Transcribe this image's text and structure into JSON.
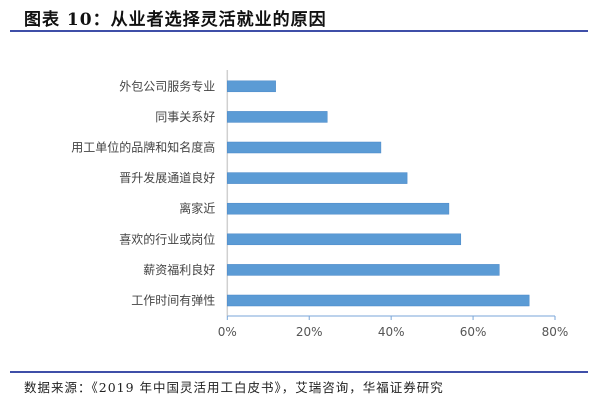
{
  "header": {
    "title": "图表 10：从业者选择灵活就业的原因"
  },
  "footer": {
    "source": "数据来源：《2019 年中国灵活用工白皮书》，艾瑞咨询，华福证券研究"
  },
  "chart_data": {
    "type": "bar",
    "orientation": "horizontal",
    "categories": [
      "外包公司服务专业",
      "同事关系好",
      "用工单位的品牌和知名度高",
      "晋升发展通道良好",
      "离家近",
      "喜欢的行业或岗位",
      "薪资福利良好",
      "工作时间有弹性"
    ],
    "values": [
      11.8,
      24.4,
      37.5,
      43.9,
      54.1,
      57.0,
      66.4,
      73.7
    ],
    "unit": "%",
    "xlim": [
      0,
      80
    ],
    "xticks": [
      "0%",
      "20%",
      "40%",
      "60%",
      "80%"
    ],
    "grid": false,
    "bar_color": "#5b9bd5"
  }
}
